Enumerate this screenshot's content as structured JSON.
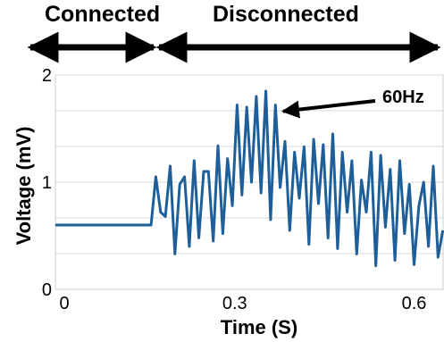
{
  "chart_data": {
    "type": "line",
    "title": "",
    "xlabel": "Time (S)",
    "ylabel": "Voltage (mV)",
    "xlim": [
      0,
      0.65
    ],
    "ylim": [
      0,
      2
    ],
    "x_ticks": [
      {
        "value": 0,
        "label": "0"
      },
      {
        "value": 0.3,
        "label": "0.3"
      },
      {
        "value": 0.6,
        "label": "0.6"
      }
    ],
    "y_ticks": [
      {
        "value": 0,
        "label": "0"
      },
      {
        "value": 1,
        "label": "1"
      },
      {
        "value": 2,
        "label": "2"
      }
    ],
    "grid": "horizontal",
    "line_color": "#1f5f99",
    "regions": [
      {
        "label": "Connected",
        "x_start": 0,
        "x_end": 0.16
      },
      {
        "label": "Disconnected",
        "x_start": 0.16,
        "x_end": 0.65
      }
    ],
    "annotation": {
      "text": "60Hz",
      "points_to_x": 0.39,
      "points_to_y": 1.72
    },
    "series": [
      {
        "x": [
          0.0,
          0.16,
          0.168,
          0.176,
          0.184,
          0.192,
          0.2,
          0.208,
          0.216,
          0.224,
          0.232,
          0.24,
          0.248,
          0.256,
          0.264,
          0.272,
          0.28,
          0.288,
          0.296,
          0.304,
          0.312,
          0.32,
          0.328,
          0.336,
          0.344,
          0.352,
          0.36,
          0.368,
          0.376,
          0.384,
          0.392,
          0.4,
          0.408,
          0.416,
          0.424,
          0.432,
          0.44,
          0.448,
          0.456,
          0.464,
          0.472,
          0.48,
          0.488,
          0.496,
          0.504,
          0.512,
          0.52,
          0.528,
          0.536,
          0.544,
          0.552,
          0.56,
          0.568,
          0.576,
          0.584,
          0.592,
          0.6,
          0.608,
          0.616,
          0.624,
          0.632,
          0.64,
          0.648
        ],
        "y": [
          0.6,
          0.6,
          1.05,
          0.72,
          0.68,
          1.15,
          0.33,
          0.98,
          1.05,
          0.4,
          1.2,
          0.48,
          1.1,
          1.1,
          0.45,
          1.34,
          0.52,
          1.22,
          0.78,
          1.72,
          0.88,
          1.7,
          1.0,
          1.8,
          0.9,
          1.85,
          0.65,
          1.72,
          0.95,
          1.38,
          0.55,
          1.28,
          0.85,
          1.33,
          0.42,
          1.4,
          0.8,
          1.35,
          0.48,
          1.45,
          0.38,
          1.28,
          0.72,
          1.2,
          0.33,
          1.02,
          0.72,
          1.28,
          0.22,
          1.25,
          0.58,
          1.12,
          0.27,
          1.2,
          0.52,
          0.98,
          0.23,
          0.78,
          1.0,
          0.4,
          1.15,
          0.3,
          0.55
        ]
      }
    ]
  }
}
